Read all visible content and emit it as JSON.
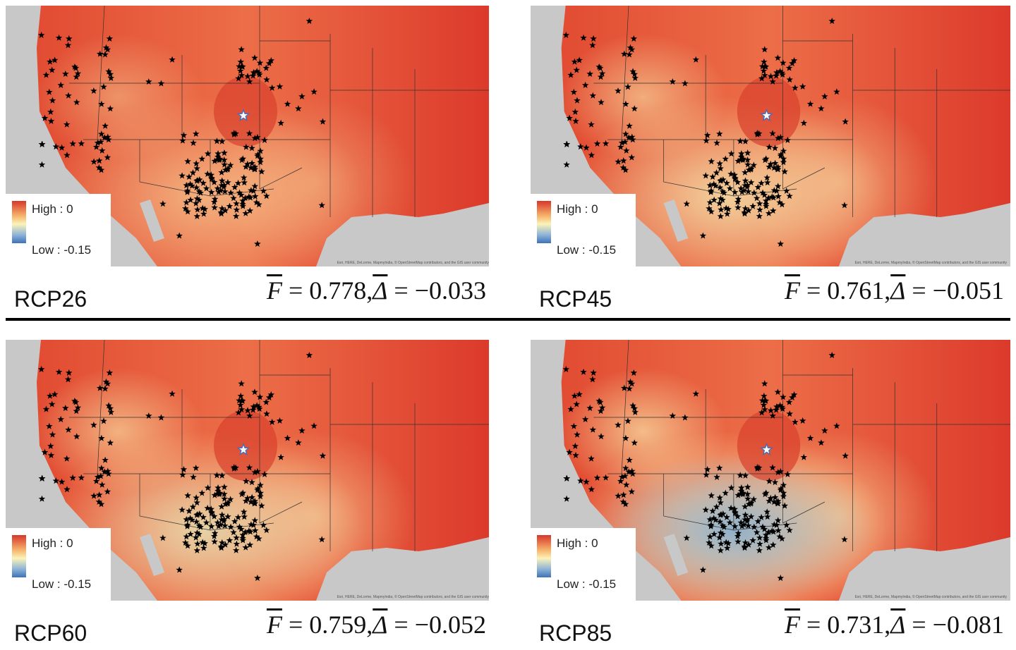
{
  "panels": [
    {
      "label": "RCP26",
      "legend": {
        "high": "High : 0",
        "low": "Low : -0.15"
      },
      "stat": {
        "f_symbol": "F",
        "f_value": "= 0.778,",
        "delta_symbol": "Δ",
        "delta_value": "= −0.033"
      },
      "attribution": "Esri, HERE, DeLorme, MapmyIndia, © OpenStreetMap contributors, and the GIS user community"
    },
    {
      "label": "RCP45",
      "legend": {
        "high": "High : 0",
        "low": "Low : -0.15"
      },
      "stat": {
        "f_symbol": "F",
        "f_value": "= 0.761,",
        "delta_symbol": "Δ",
        "delta_value": "= −0.051"
      },
      "attribution": "Esri, HERE, DeLorme, MapmyIndia, © OpenStreetMap contributors, and the GIS user community"
    },
    {
      "label": "RCP60",
      "legend": {
        "high": "High : 0",
        "low": "Low : -0.15"
      },
      "stat": {
        "f_symbol": "F",
        "f_value": "= 0.759,",
        "delta_symbol": "Δ",
        "delta_value": "= −0.052"
      },
      "attribution": "Esri, HERE, DeLorme, MapmyIndia, © OpenStreetMap contributors, and the GIS user community"
    },
    {
      "label": "RCP85",
      "legend": {
        "high": "High : 0",
        "low": "Low : -0.15"
      },
      "stat": {
        "f_symbol": "F",
        "f_value": "= 0.731,",
        "delta_symbol": "Δ",
        "delta_value": "= −0.081"
      },
      "attribution": "Esri, HERE, DeLorme, MapmyIndia, © OpenStreetMap contributors, and the GIS user community"
    }
  ]
}
